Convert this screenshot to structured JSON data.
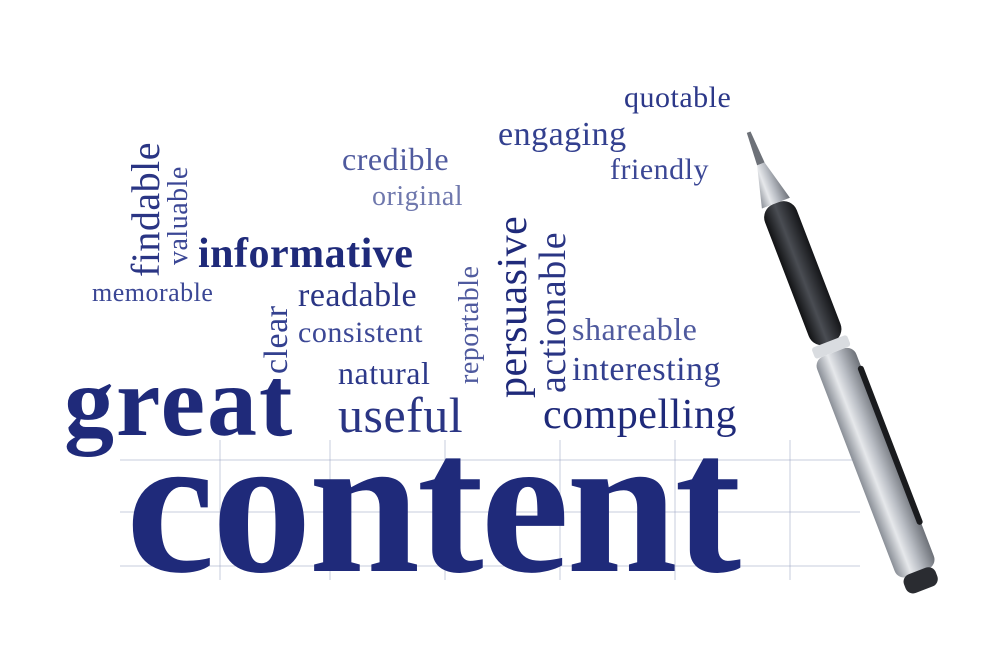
{
  "colors": {
    "ink_dark": "#1f2a7a",
    "ink_mid": "#33408f",
    "ink_light": "#6f78ad",
    "pen_silver": "#b9bdc4",
    "pen_dark": "#2a2c31"
  },
  "words": {
    "quotable": "quotable",
    "engaging": "engaging",
    "friendly": "friendly",
    "credible": "credible",
    "original": "original",
    "findable": "findable",
    "valuable": "valuable",
    "informative": "informative",
    "memorable": "memorable",
    "readable": "readable",
    "clear": "clear",
    "consistent": "consistent",
    "natural": "natural",
    "reportable": "reportable",
    "persuasive": "persuasive",
    "actionable": "actionable",
    "shareable": "shareable",
    "interesting": "interesting",
    "compelling": "compelling",
    "useful": "useful",
    "great": "great",
    "content": "content"
  },
  "icons": {
    "pen": "ballpoint-pen-icon"
  }
}
